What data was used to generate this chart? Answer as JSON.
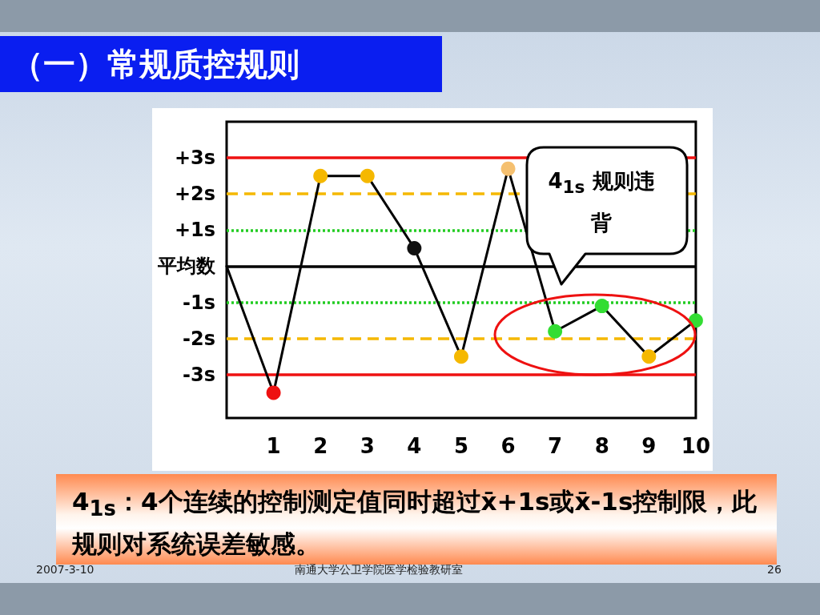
{
  "chart_data": {
    "type": "line",
    "title": "（一）常规质控规则",
    "categories": [
      null,
      "1",
      "2",
      "3",
      "4",
      "5",
      "6",
      "7",
      "8",
      "9",
      "10"
    ],
    "values": [
      0,
      -3.5,
      2.5,
      2.5,
      0.5,
      -2.5,
      2.7,
      -1.8,
      -1.1,
      -2.5,
      -1.5
    ],
    "color": "#000000",
    "colors": [
      null,
      "#ee1111",
      "#f5b800",
      "#f5b800",
      "#111111",
      "#f5b800",
      "#f5c070",
      "#33dd33",
      "#33dd33",
      "#f5b800",
      "#33dd33"
    ],
    "marker": "circle",
    "line_style": "solid",
    "grid": false,
    "ylim": [
      -4.2,
      4
    ],
    "yticks": [
      {
        "value": 3,
        "label": "+3s"
      },
      {
        "value": 2,
        "label": "+2s"
      },
      {
        "value": 1,
        "label": "+1s"
      },
      {
        "value": 0,
        "label": "平均数"
      },
      {
        "value": -1,
        "label": "-1s"
      },
      {
        "value": -2,
        "label": "-2s"
      },
      {
        "value": -3,
        "label": "-3s"
      }
    ],
    "ref_lines": [
      {
        "axis": "y",
        "value": 3,
        "color": "#ee1111",
        "line_style": "solid"
      },
      {
        "axis": "y",
        "value": 2,
        "color": "#f5b800",
        "line_style": "dashed"
      },
      {
        "axis": "y",
        "value": 1,
        "color": "#22cc22",
        "line_style": "dotted"
      },
      {
        "axis": "y",
        "value": 0,
        "color": "#000000",
        "line_style": "solid"
      },
      {
        "axis": "y",
        "value": -1,
        "color": "#22cc22",
        "line_style": "dotted"
      },
      {
        "axis": "y",
        "value": -2,
        "color": "#f5b800",
        "line_style": "dashed"
      },
      {
        "axis": "y",
        "value": -3,
        "color": "#ee1111",
        "line_style": "solid"
      }
    ],
    "annotations": [
      "4$_{1s}$ 规则违背",
      "4$_{1s}$：4个连续的控制测定值同时超过x̄+1s或x̄-1s控制限，此规则对系统误差敏感。",
      "2007-3-10",
      "南通大学公卫学院医学检验教研室",
      "26"
    ]
  }
}
